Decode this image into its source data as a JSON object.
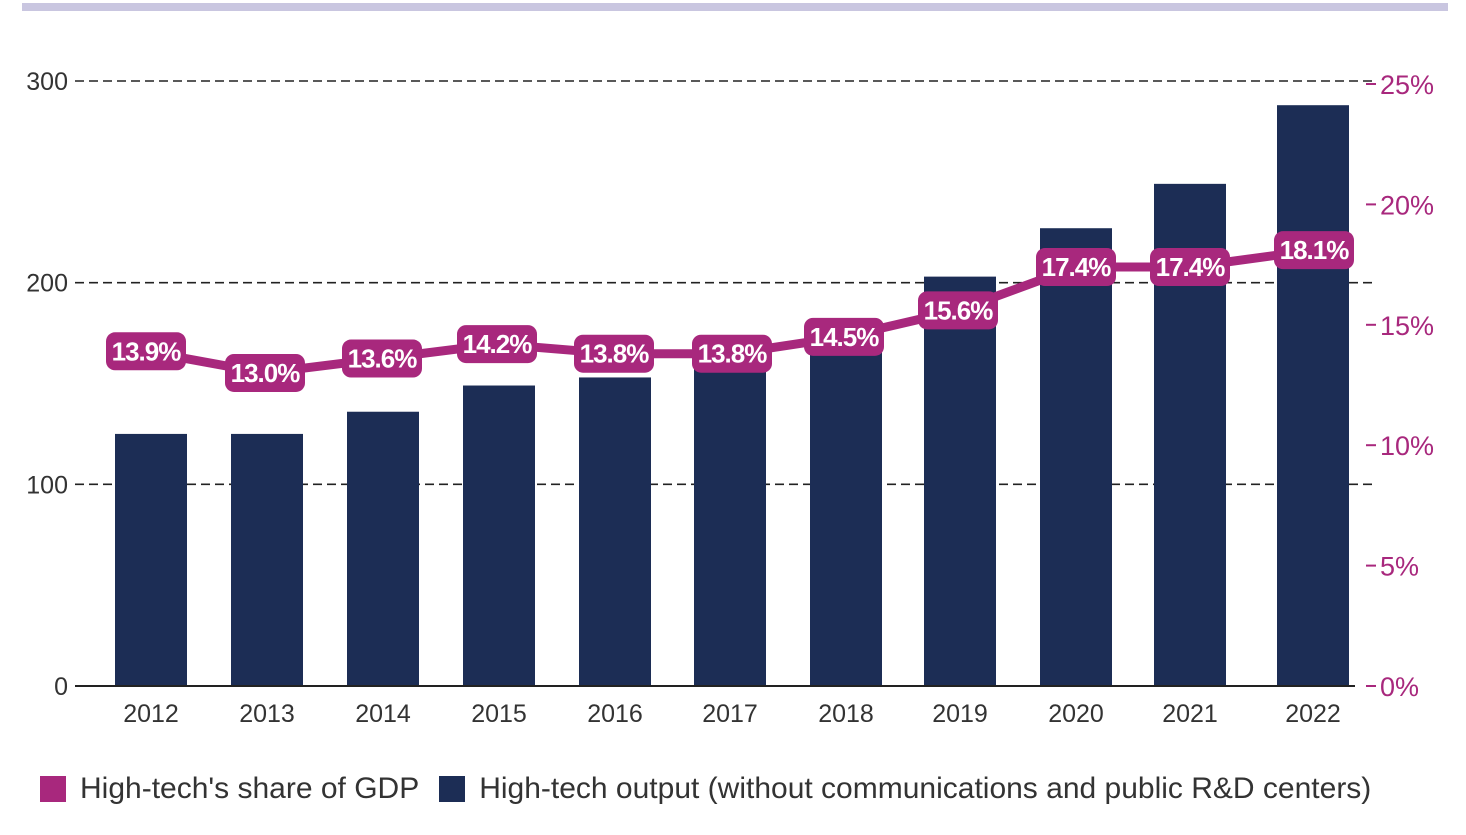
{
  "chart_data": {
    "type": "bar",
    "categories": [
      "2012",
      "2013",
      "2014",
      "2015",
      "2016",
      "2017",
      "2018",
      "2019",
      "2020",
      "2021",
      "2022"
    ],
    "series": [
      {
        "name": "High-tech output (without communications and public R&D centers)",
        "type": "bar",
        "axis": "left",
        "color": "#1c2d55",
        "values": [
          125,
          125,
          136,
          149,
          153,
          163,
          172,
          203,
          227,
          249,
          288
        ]
      },
      {
        "name": "High-tech's share of GDP",
        "type": "line",
        "axis": "right",
        "color": "#a8287d",
        "values": [
          13.9,
          13.0,
          13.6,
          14.2,
          13.8,
          13.8,
          14.5,
          15.6,
          17.4,
          17.4,
          18.1
        ],
        "labels": [
          "13.9%",
          "13.0%",
          "13.6%",
          "14.2%",
          "13.8%",
          "13.8%",
          "14.5%",
          "15.6%",
          "17.4%",
          "17.4%",
          "18.1%"
        ]
      }
    ],
    "y_left": {
      "ticks": [
        0,
        100,
        200,
        300
      ],
      "tick_labels": [
        "0",
        "100",
        "200",
        "300"
      ],
      "ylim": [
        0,
        300
      ]
    },
    "y_right": {
      "ticks": [
        0,
        5,
        10,
        15,
        20,
        25
      ],
      "tick_labels": [
        "0%",
        "5%",
        "10%",
        "15%",
        "20%",
        "25%"
      ],
      "ylim": [
        0,
        25
      ]
    },
    "grid": true,
    "legend_position": "bottom"
  }
}
